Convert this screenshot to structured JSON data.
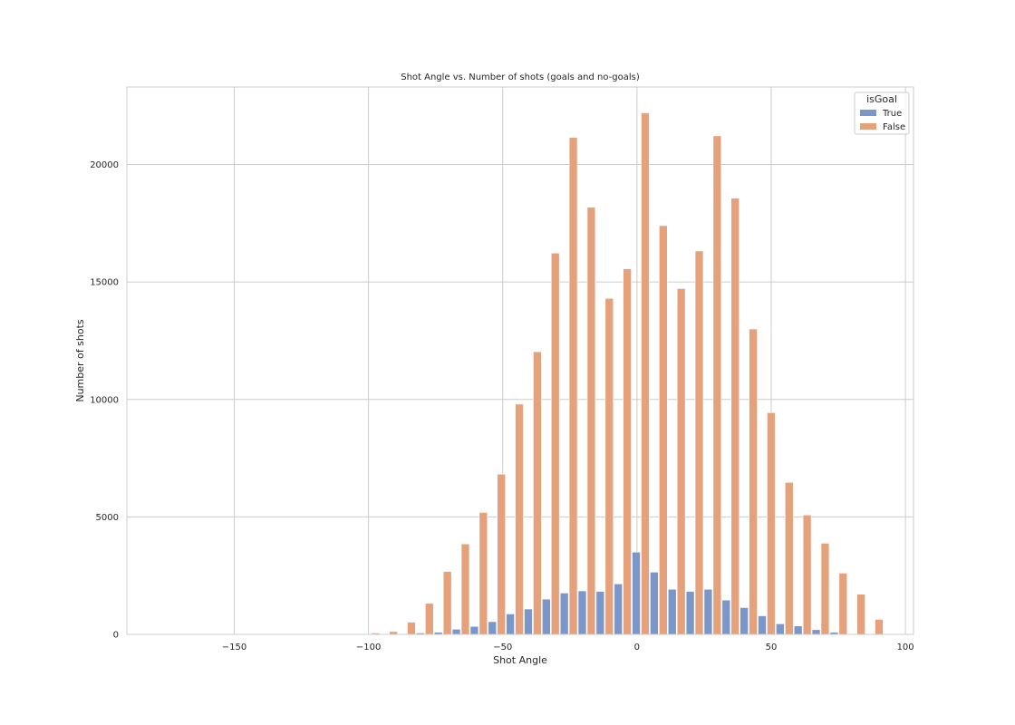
{
  "chart_data": {
    "type": "bar",
    "title": "Shot Angle vs. Number of shots (goals and no-goals)",
    "xlabel": "Shot Angle",
    "ylabel": "Number of shots",
    "xlim": [
      -190,
      103
    ],
    "ylim": [
      0,
      23300
    ],
    "xticks": [
      -150,
      -100,
      -50,
      0,
      50,
      100
    ],
    "xtick_labels": [
      "−150",
      "−100",
      "−50",
      "0",
      "50",
      "100"
    ],
    "yticks": [
      0,
      5000,
      10000,
      15000,
      20000
    ],
    "ytick_labels": [
      "0",
      "5000",
      "10000",
      "15000",
      "20000"
    ],
    "grid": true,
    "legend": {
      "title": "isGoal",
      "placement": "top-right",
      "entries": [
        "True",
        "False"
      ]
    },
    "bin_width": 6.7,
    "series": [
      {
        "name": "True",
        "color": "#7b96c9",
        "x": [
          -85.7,
          -79.0,
          -72.3,
          -65.6,
          -58.9,
          -52.2,
          -45.5,
          -38.8,
          -32.1,
          -25.4,
          -18.7,
          -12.0,
          -5.3,
          1.4,
          8.1,
          14.8,
          21.5,
          28.2,
          34.9,
          41.6,
          48.3,
          55.0,
          61.7,
          68.4,
          75.1,
          81.8
        ],
        "values": [
          30,
          60,
          90,
          220,
          340,
          540,
          870,
          1080,
          1500,
          1760,
          1850,
          1830,
          2150,
          3500,
          2650,
          1920,
          1830,
          1920,
          1460,
          1140,
          790,
          450,
          360,
          200,
          90,
          30
        ]
      },
      {
        "name": "False",
        "color": "#e5a17b",
        "x": [
          -119.2,
          -112.5,
          -105.8,
          -99.1,
          -92.4,
          -85.7,
          -79.0,
          -72.3,
          -65.6,
          -58.9,
          -52.2,
          -45.5,
          -38.8,
          -32.1,
          -25.4,
          -18.7,
          -12.0,
          -5.3,
          1.4,
          8.1,
          14.8,
          21.5,
          28.2,
          34.9,
          41.6,
          48.3,
          55.0,
          61.7,
          68.4,
          75.1,
          81.8,
          88.5
        ],
        "values": [
          10,
          15,
          20,
          60,
          120,
          520,
          1320,
          2680,
          3850,
          5190,
          6820,
          9800,
          12030,
          16230,
          21150,
          18180,
          14300,
          15560,
          22200,
          17400,
          14720,
          16320,
          21220,
          18570,
          13000,
          9440,
          6470,
          5080,
          3880,
          2610,
          1710,
          640
        ]
      }
    ]
  }
}
